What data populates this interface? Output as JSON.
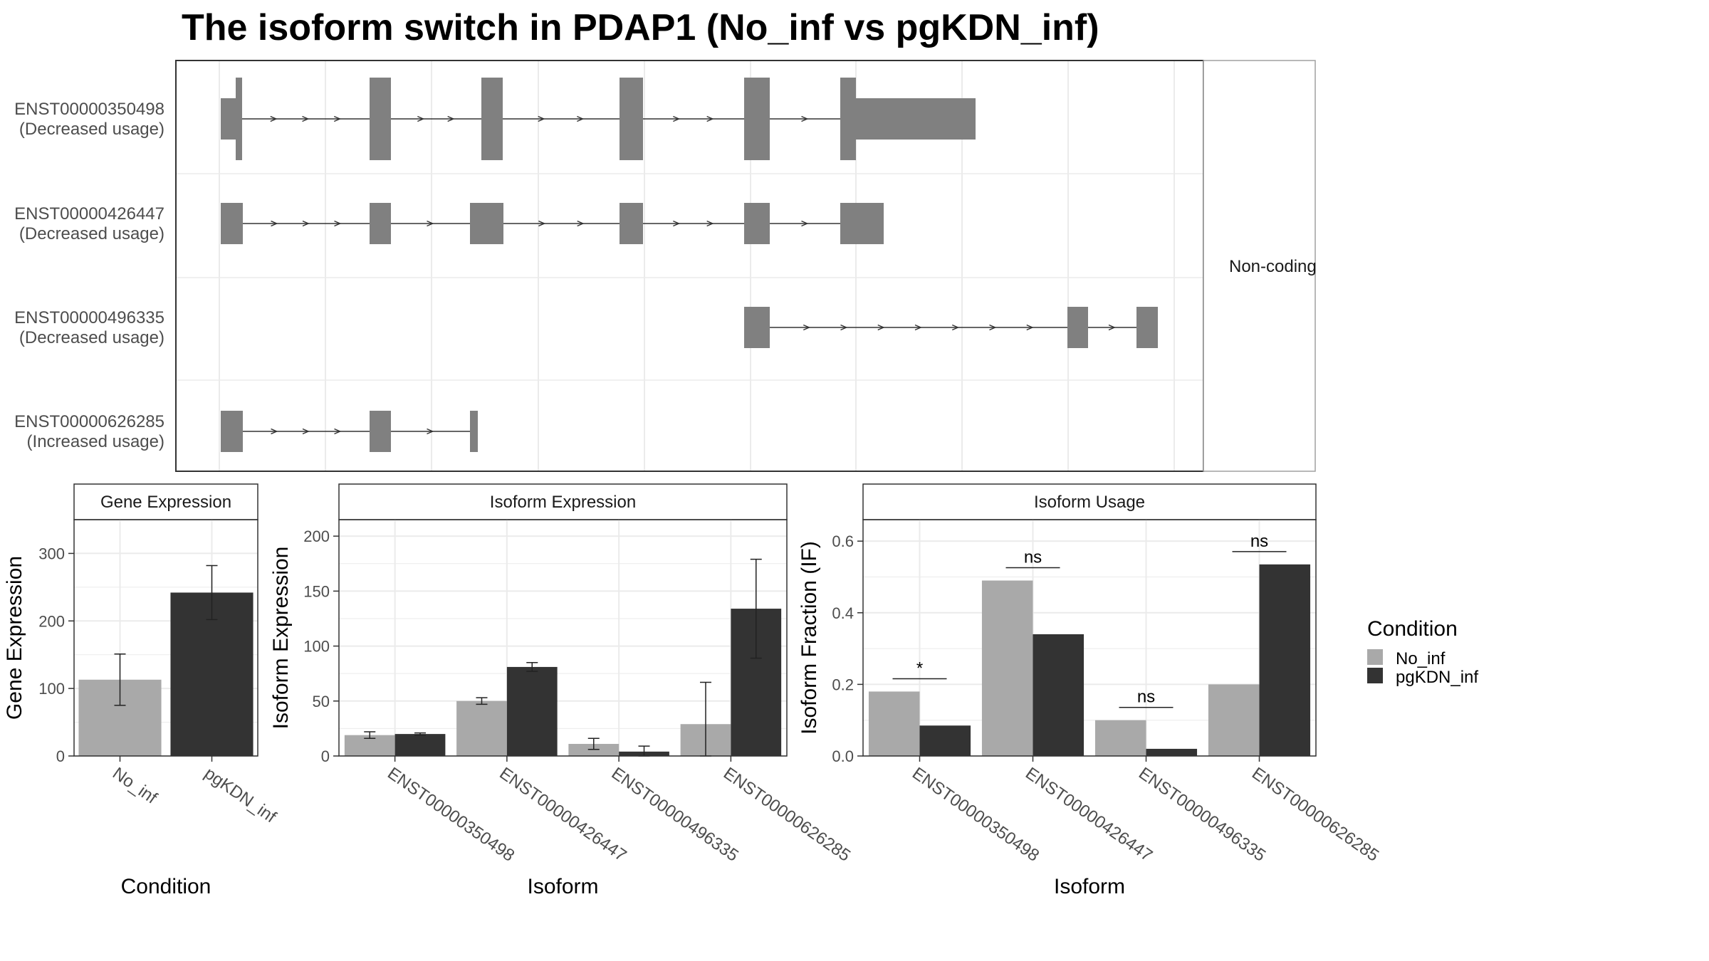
{
  "title": "The isoform switch in PDAP1 (No_inf vs pgKDN_inf)",
  "colors": {
    "no_inf": "#a9a9a9",
    "pgkdn_inf": "#333333",
    "exon": "#808080",
    "grid": "#ebebeb",
    "frame": "#333333"
  },
  "structure": {
    "strip_label": "Non-coding",
    "isoforms": [
      {
        "id": "ENST00000350498",
        "usage": "(Decreased usage)"
      },
      {
        "id": "ENST00000426447",
        "usage": "(Decreased usage)"
      },
      {
        "id": "ENST00000496335",
        "usage": "(Decreased usage)"
      },
      {
        "id": "ENST00000626285",
        "usage": "(Increased usage)"
      }
    ]
  },
  "legend": {
    "title": "Condition",
    "items": [
      {
        "label": "No_inf",
        "color": "#a9a9a9"
      },
      {
        "label": "pgKDN_inf",
        "color": "#333333"
      }
    ]
  },
  "chart_data": [
    {
      "type": "bar",
      "title": "Gene Expression",
      "xlabel": "Condition",
      "ylabel": "Gene Expression",
      "ylim": [
        0,
        350
      ],
      "yticks": [
        "0",
        "100",
        "200",
        "300"
      ],
      "categories": [
        "No_inf",
        "pgKDN_inf"
      ],
      "values": [
        113,
        242
      ],
      "error_low": [
        75,
        202
      ],
      "error_high": [
        151,
        282
      ]
    },
    {
      "type": "bar",
      "title": "Isoform Expression",
      "xlabel": "Isoform",
      "ylabel": "Isoform Expression",
      "ylim": [
        0,
        215
      ],
      "yticks": [
        "0",
        "50",
        "100",
        "150",
        "200"
      ],
      "categories": [
        "ENST00000350498",
        "ENST00000426447",
        "ENST00000496335",
        "ENST00000626285"
      ],
      "series": [
        {
          "name": "No_inf",
          "values": [
            19,
            50,
            11,
            29
          ],
          "error_low": [
            16,
            47,
            6,
            0
          ],
          "error_high": [
            22,
            53,
            16,
            67
          ]
        },
        {
          "name": "pgKDN_inf",
          "values": [
            20,
            81,
            4,
            134
          ],
          "error_low": [
            19,
            77,
            0,
            89
          ],
          "error_high": [
            21,
            85,
            9,
            179
          ]
        }
      ]
    },
    {
      "type": "bar",
      "title": "Isoform Usage",
      "xlabel": "Isoform",
      "ylabel": "Isoform Fraction (IF)",
      "ylim": [
        0,
        0.66
      ],
      "yticks": [
        "0.0",
        "0.2",
        "0.4",
        "0.6"
      ],
      "categories": [
        "ENST00000350498",
        "ENST00000426447",
        "ENST00000496335",
        "ENST00000626285"
      ],
      "series": [
        {
          "name": "No_inf",
          "values": [
            0.18,
            0.49,
            0.1,
            0.2
          ]
        },
        {
          "name": "pgKDN_inf",
          "values": [
            0.085,
            0.34,
            0.02,
            0.535
          ]
        }
      ],
      "significance": [
        "*",
        "ns",
        "ns",
        "ns"
      ]
    }
  ]
}
